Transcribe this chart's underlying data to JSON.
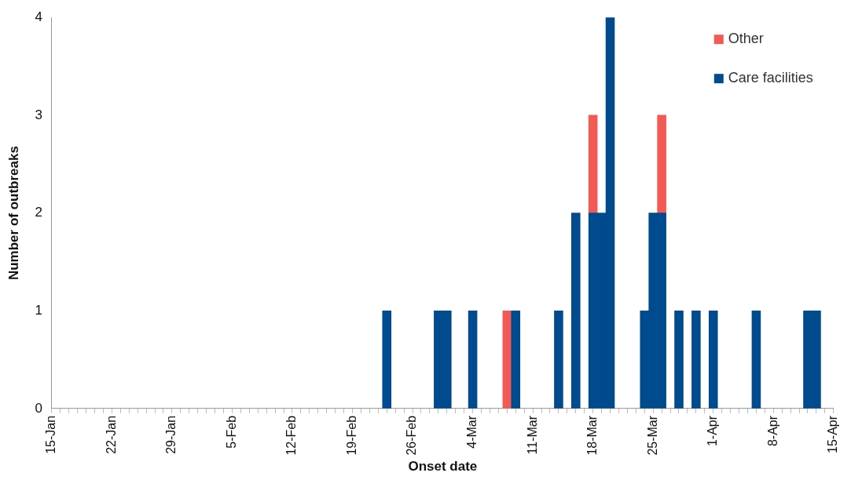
{
  "chart_data": {
    "type": "bar",
    "stacked": true,
    "xlabel": "Onset date",
    "ylabel": "Number of outbreaks",
    "categories": [
      "15-Jan",
      null,
      null,
      null,
      null,
      null,
      null,
      "22-Jan",
      null,
      null,
      null,
      null,
      null,
      null,
      "29-Jan",
      null,
      null,
      null,
      null,
      null,
      null,
      "5-Feb",
      null,
      null,
      null,
      null,
      null,
      null,
      "12-Feb",
      null,
      null,
      null,
      null,
      null,
      null,
      "19-Feb",
      null,
      null,
      null,
      null,
      null,
      null,
      "26-Feb",
      null,
      null,
      null,
      null,
      null,
      null,
      "4-Mar",
      null,
      null,
      null,
      null,
      null,
      null,
      "11-Mar",
      null,
      null,
      null,
      null,
      null,
      null,
      "18-Mar",
      null,
      null,
      null,
      null,
      null,
      null,
      "25-Mar",
      null,
      null,
      null,
      null,
      null,
      null,
      "1-Apr",
      null,
      null,
      null,
      null,
      null,
      null,
      "8-Apr",
      null,
      null,
      null,
      null,
      null,
      null,
      "15-Apr"
    ],
    "series": [
      {
        "name": "Care facilities",
        "color": "#004b8d",
        "values": [
          null,
          null,
          null,
          null,
          null,
          null,
          null,
          null,
          null,
          null,
          null,
          null,
          null,
          null,
          null,
          null,
          null,
          null,
          null,
          null,
          null,
          null,
          null,
          null,
          null,
          null,
          null,
          null,
          null,
          null,
          null,
          null,
          null,
          null,
          null,
          null,
          null,
          null,
          null,
          1,
          null,
          null,
          null,
          null,
          null,
          1,
          1,
          null,
          null,
          1,
          null,
          null,
          null,
          null,
          1,
          null,
          null,
          null,
          null,
          1,
          null,
          2,
          null,
          2,
          2,
          4,
          null,
          null,
          null,
          1,
          2,
          2,
          null,
          1,
          null,
          1,
          null,
          1,
          null,
          null,
          null,
          null,
          1,
          null,
          null,
          null,
          null,
          null,
          1,
          1,
          null,
          null
        ]
      },
      {
        "name": "Other",
        "color": "#f25a55",
        "values": [
          null,
          null,
          null,
          null,
          null,
          null,
          null,
          null,
          null,
          null,
          null,
          null,
          null,
          null,
          null,
          null,
          null,
          null,
          null,
          null,
          null,
          null,
          null,
          null,
          null,
          null,
          null,
          null,
          null,
          null,
          null,
          null,
          null,
          null,
          null,
          null,
          null,
          null,
          null,
          null,
          null,
          null,
          null,
          null,
          null,
          null,
          null,
          null,
          null,
          null,
          null,
          null,
          null,
          1,
          null,
          null,
          null,
          null,
          null,
          null,
          null,
          null,
          null,
          1,
          null,
          null,
          null,
          null,
          null,
          null,
          null,
          1,
          null,
          null,
          null,
          null,
          null,
          null,
          null,
          null,
          null,
          null,
          null,
          null,
          null,
          null,
          null,
          null,
          null,
          null,
          null,
          null
        ]
      }
    ],
    "ylim": [
      0,
      4
    ],
    "yticks": [
      0,
      1,
      2,
      3,
      4
    ],
    "grid": false,
    "legend": "top right"
  }
}
